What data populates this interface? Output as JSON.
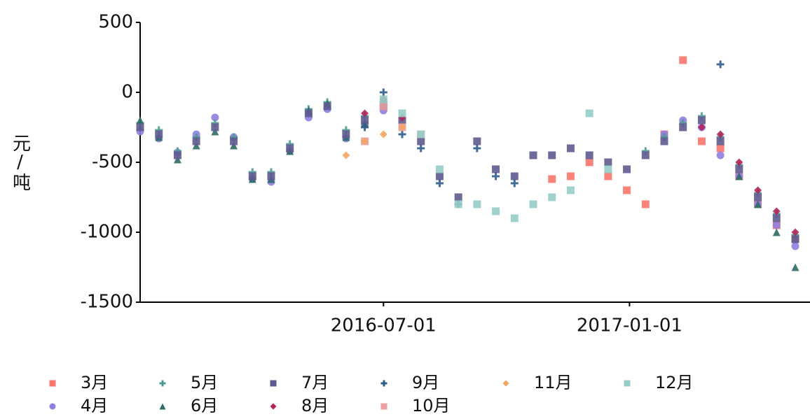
{
  "chart_data": {
    "type": "scatter",
    "ylabel": "元/吨",
    "x": [
      "2016-01-01",
      "2016-01-15",
      "2016-01-29",
      "2016-02-12",
      "2016-02-26",
      "2016-03-11",
      "2016-03-25",
      "2016-04-08",
      "2016-04-22",
      "2016-05-06",
      "2016-05-20",
      "2016-06-03",
      "2016-06-17",
      "2016-07-01",
      "2016-07-15",
      "2016-07-29",
      "2016-08-12",
      "2016-08-26",
      "2016-09-09",
      "2016-09-23",
      "2016-10-07",
      "2016-10-21",
      "2016-11-04",
      "2016-11-18",
      "2016-12-02",
      "2016-12-16",
      "2016-12-30",
      "2017-01-13",
      "2017-01-27",
      "2017-02-10",
      "2017-02-24",
      "2017-03-10",
      "2017-03-24",
      "2017-04-07",
      "2017-04-21",
      "2017-05-05"
    ],
    "xlim": [
      "2016-01-01",
      "2017-05-16"
    ],
    "xticks": [
      "2016-07-01",
      "2017-01-01"
    ],
    "ylim": [
      -1500,
      500
    ],
    "yticks": [
      500,
      0,
      -500,
      -1000,
      -1500
    ],
    "series": [
      {
        "name": "3月",
        "color": "#f8766d",
        "marker": "square",
        "values": [
          null,
          null,
          null,
          null,
          null,
          null,
          null,
          null,
          null,
          null,
          null,
          null,
          null,
          null,
          null,
          null,
          null,
          null,
          null,
          null,
          null,
          null,
          -620,
          -600,
          -500,
          -600,
          -700,
          -800,
          -300,
          230,
          -350,
          -400,
          -600,
          -800,
          -950,
          -1050
        ]
      },
      {
        "name": "4月",
        "color": "#8f7fe0",
        "marker": "circle",
        "values": [
          -280,
          -330,
          -430,
          -300,
          -180,
          -320,
          -620,
          -640,
          -420,
          -180,
          -120,
          -330,
          -230,
          -130,
          null,
          null,
          null,
          null,
          null,
          null,
          null,
          null,
          null,
          null,
          null,
          null,
          null,
          null,
          -300,
          -200,
          -250,
          -450,
          -600,
          -800,
          -950,
          -1100
        ]
      },
      {
        "name": "5月",
        "color": "#4e9a92",
        "marker": "plus",
        "values": [
          -220,
          -270,
          -420,
          -320,
          -220,
          -320,
          -570,
          -570,
          -370,
          -120,
          -70,
          -270,
          -170,
          -70,
          null,
          null,
          null,
          null,
          null,
          null,
          null,
          null,
          null,
          null,
          null,
          null,
          null,
          -420,
          -320,
          -220,
          -170,
          -320,
          -520,
          -720,
          -870,
          -1020
        ]
      },
      {
        "name": "6月",
        "color": "#2f6b66",
        "marker": "triangle",
        "values": [
          -200,
          -320,
          -480,
          -380,
          -280,
          -380,
          -620,
          -620,
          -420,
          -130,
          -80,
          -320,
          -220,
          null,
          null,
          null,
          null,
          null,
          null,
          null,
          null,
          null,
          null,
          null,
          null,
          null,
          null,
          null,
          null,
          null,
          null,
          null,
          -600,
          -800,
          -1000,
          -1250
        ]
      },
      {
        "name": "7月",
        "color": "#5e5a8f",
        "marker": "square",
        "values": [
          -250,
          -300,
          -450,
          -350,
          -250,
          -350,
          -600,
          -600,
          -400,
          -150,
          -100,
          -300,
          -200,
          -100,
          -200,
          -350,
          -600,
          -750,
          -350,
          -550,
          -600,
          -450,
          -450,
          -400,
          -450,
          -500,
          -550,
          -450,
          -350,
          -250,
          -200,
          -350,
          -550,
          -750,
          -900,
          -1050
        ]
      },
      {
        "name": "8月",
        "color": "#b0245a",
        "marker": "diamond",
        "values": [
          null,
          null,
          null,
          null,
          null,
          null,
          null,
          null,
          null,
          null,
          null,
          null,
          -150,
          -50,
          -180,
          null,
          null,
          null,
          null,
          null,
          null,
          null,
          null,
          null,
          null,
          null,
          null,
          null,
          null,
          null,
          -250,
          -300,
          -500,
          -700,
          -850,
          -1000
        ]
      },
      {
        "name": "9月",
        "color": "#2e5c8a",
        "marker": "plus",
        "values": [
          null,
          null,
          null,
          null,
          null,
          null,
          null,
          null,
          null,
          null,
          null,
          null,
          -250,
          0,
          -300,
          -400,
          -650,
          -800,
          -400,
          -600,
          -650,
          null,
          null,
          null,
          null,
          null,
          null,
          null,
          null,
          null,
          null,
          200,
          null,
          null,
          null,
          null
        ]
      },
      {
        "name": "10月",
        "color": "#e8a0a0",
        "marker": "square",
        "values": [
          null,
          null,
          null,
          null,
          null,
          null,
          null,
          null,
          null,
          null,
          null,
          null,
          -350,
          -100,
          -250,
          -300,
          null,
          null,
          null,
          null,
          null,
          null,
          null,
          null,
          null,
          null,
          null,
          null,
          null,
          null,
          null,
          null,
          null,
          null,
          null,
          null
        ]
      },
      {
        "name": "11月",
        "color": "#f4a460",
        "marker": "diamond",
        "values": [
          null,
          null,
          null,
          null,
          null,
          null,
          null,
          null,
          null,
          null,
          null,
          -450,
          -350,
          -300,
          -250,
          null,
          null,
          null,
          null,
          null,
          null,
          null,
          null,
          null,
          null,
          null,
          null,
          null,
          null,
          null,
          null,
          null,
          null,
          null,
          null,
          null
        ]
      },
      {
        "name": "12月",
        "color": "#96cdc8",
        "marker": "square",
        "values": [
          null,
          null,
          null,
          null,
          null,
          null,
          null,
          null,
          null,
          null,
          null,
          null,
          null,
          -50,
          -150,
          -300,
          -550,
          -800,
          -800,
          -850,
          -900,
          -800,
          -750,
          -700,
          -150,
          -550,
          null,
          null,
          null,
          null,
          null,
          null,
          null,
          null,
          null,
          null
        ]
      }
    ]
  }
}
